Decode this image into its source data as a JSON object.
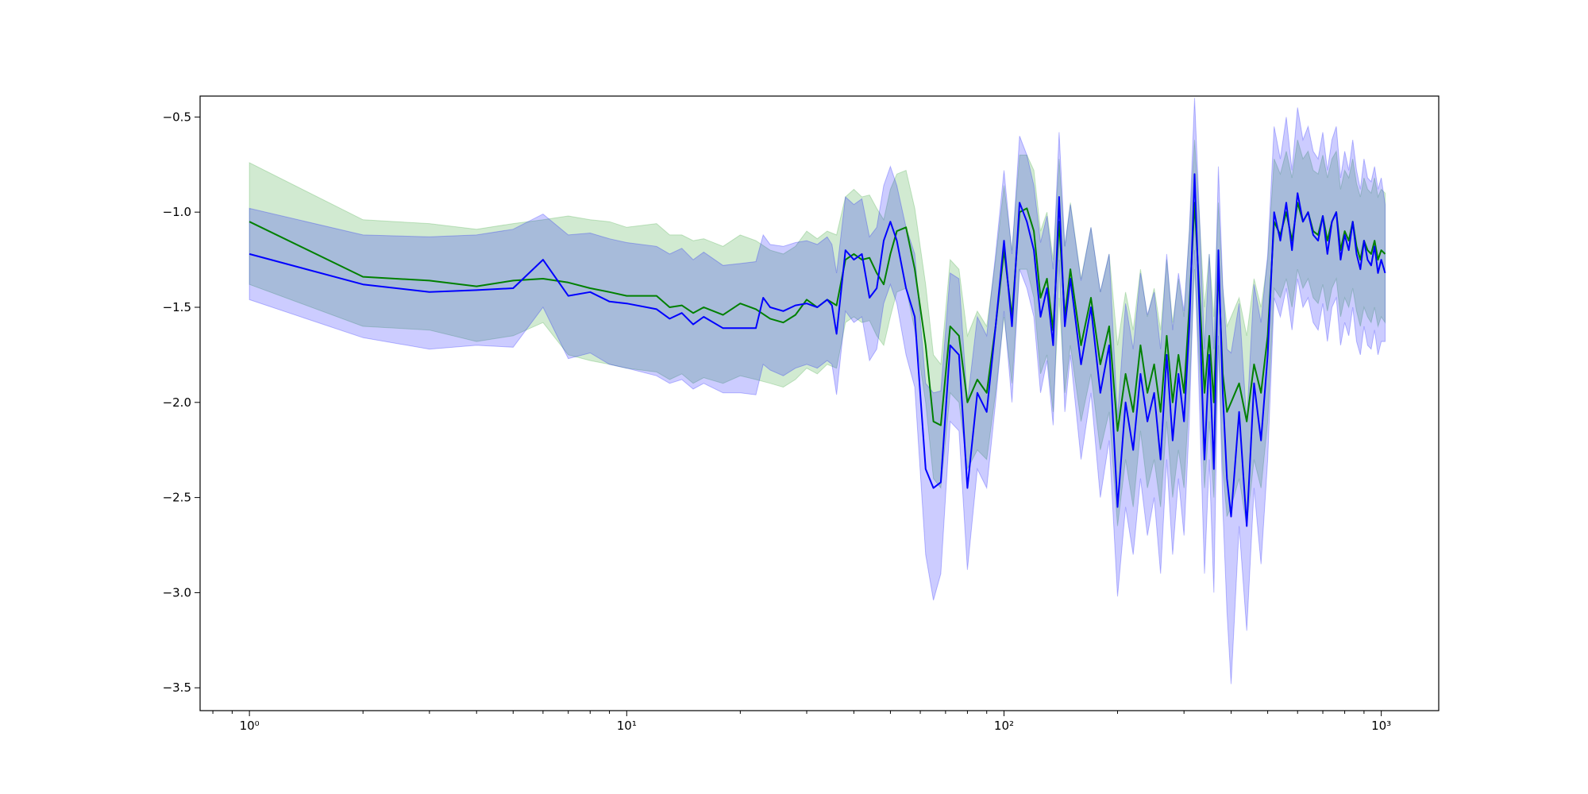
{
  "chart_data": {
    "type": "line",
    "title": "",
    "xlabel": "",
    "ylabel": "",
    "x_scale": "log",
    "xlim": [
      0.74,
      1420
    ],
    "ylim": [
      -3.62,
      -0.39
    ],
    "grid": false,
    "legend": "none",
    "x_ticks": [
      {
        "value": 1,
        "label": "10⁰"
      },
      {
        "value": 10,
        "label": "10¹"
      },
      {
        "value": 100,
        "label": "10²"
      },
      {
        "value": 1000,
        "label": "10³"
      }
    ],
    "y_ticks": [
      {
        "value": -0.5,
        "label": "−0.5"
      },
      {
        "value": -1.0,
        "label": "−1.0"
      },
      {
        "value": -1.5,
        "label": "−1.5"
      },
      {
        "value": -2.0,
        "label": "−2.0"
      },
      {
        "value": -2.5,
        "label": "−2.5"
      },
      {
        "value": -3.0,
        "label": "−3.0"
      },
      {
        "value": -3.5,
        "label": "−3.5"
      }
    ],
    "series": [
      {
        "color": "#008000",
        "band_color": "#2ca02c",
        "band_opacity": 0.22,
        "x": [
          1,
          2,
          3,
          4,
          5,
          6,
          7,
          8,
          9,
          10,
          12,
          13,
          14,
          15,
          16,
          18,
          20,
          22,
          24,
          26,
          28,
          30,
          32,
          34,
          36,
          38,
          40,
          42,
          44,
          46,
          48,
          50,
          52,
          55,
          58,
          62,
          65,
          68,
          72,
          76,
          80,
          85,
          90,
          95,
          100,
          105,
          110,
          115,
          120,
          125,
          130,
          135,
          140,
          145,
          150,
          160,
          170,
          180,
          190,
          200,
          210,
          220,
          230,
          240,
          250,
          260,
          270,
          280,
          290,
          300,
          310,
          320,
          330,
          340,
          350,
          360,
          370,
          380,
          390,
          400,
          420,
          440,
          460,
          480,
          500,
          520,
          540,
          560,
          580,
          600,
          620,
          640,
          660,
          680,
          700,
          720,
          740,
          760,
          780,
          800,
          820,
          840,
          860,
          880,
          900,
          920,
          940,
          960,
          980,
          1000,
          1024
        ],
        "y": [
          -1.05,
          -1.34,
          -1.36,
          -1.39,
          -1.36,
          -1.35,
          -1.37,
          -1.4,
          -1.42,
          -1.44,
          -1.44,
          -1.5,
          -1.49,
          -1.53,
          -1.5,
          -1.54,
          -1.48,
          -1.51,
          -1.56,
          -1.58,
          -1.54,
          -1.46,
          -1.5,
          -1.46,
          -1.49,
          -1.25,
          -1.22,
          -1.25,
          -1.24,
          -1.32,
          -1.38,
          -1.22,
          -1.1,
          -1.08,
          -1.3,
          -1.7,
          -2.1,
          -2.12,
          -1.6,
          -1.65,
          -2.0,
          -1.88,
          -1.95,
          -1.6,
          -1.2,
          -1.55,
          -1.0,
          -0.98,
          -1.1,
          -1.45,
          -1.35,
          -1.62,
          -1.05,
          -1.55,
          -1.3,
          -1.7,
          -1.45,
          -1.8,
          -1.6,
          -2.15,
          -1.85,
          -2.05,
          -1.7,
          -1.95,
          -1.8,
          -2.05,
          -1.65,
          -2.0,
          -1.75,
          -1.95,
          -1.5,
          -0.95,
          -1.45,
          -1.95,
          -1.65,
          -2.0,
          -1.3,
          -1.85,
          -2.05,
          -2.0,
          -1.9,
          -2.1,
          -1.8,
          -1.95,
          -1.65,
          -1.05,
          -1.12,
          -1.0,
          -1.15,
          -0.95,
          -1.05,
          -1.0,
          -1.1,
          -1.12,
          -1.02,
          -1.15,
          -1.05,
          -1.0,
          -1.2,
          -1.1,
          -1.15,
          -1.05,
          -1.18,
          -1.25,
          -1.15,
          -1.2,
          -1.22,
          -1.15,
          -1.25,
          -1.2,
          -1.22
        ],
        "lower": [
          -1.38,
          -1.6,
          -1.62,
          -1.68,
          -1.65,
          -1.58,
          -1.75,
          -1.78,
          -1.8,
          -1.82,
          -1.84,
          -1.88,
          -1.85,
          -1.9,
          -1.87,
          -1.9,
          -1.86,
          -1.88,
          -1.9,
          -1.92,
          -1.88,
          -1.82,
          -1.85,
          -1.8,
          -1.82,
          -1.58,
          -1.55,
          -1.58,
          -1.57,
          -1.65,
          -1.7,
          -1.55,
          -1.42,
          -1.4,
          -1.62,
          -2.0,
          -2.4,
          -2.45,
          -1.95,
          -2.0,
          -2.35,
          -2.25,
          -2.3,
          -1.95,
          -1.55,
          -1.9,
          -1.3,
          -1.3,
          -1.45,
          -1.85,
          -1.75,
          -2.05,
          -1.45,
          -1.95,
          -1.7,
          -2.1,
          -1.85,
          -2.25,
          -2.05,
          -2.65,
          -2.3,
          -2.55,
          -2.15,
          -2.45,
          -2.3,
          -2.55,
          -2.1,
          -2.5,
          -2.25,
          -2.45,
          -1.95,
          -1.3,
          -1.85,
          -2.45,
          -2.1,
          -2.5,
          -1.7,
          -2.35,
          -2.6,
          -2.55,
          -2.4,
          -2.65,
          -2.3,
          -2.45,
          -2.1,
          -1.4,
          -1.45,
          -1.35,
          -1.5,
          -1.3,
          -1.4,
          -1.35,
          -1.45,
          -1.48,
          -1.38,
          -1.52,
          -1.4,
          -1.35,
          -1.55,
          -1.45,
          -1.5,
          -1.4,
          -1.52,
          -1.6,
          -1.5,
          -1.55,
          -1.58,
          -1.5,
          -1.6,
          -1.55,
          -1.58
        ],
        "upper": [
          -0.74,
          -1.04,
          -1.06,
          -1.09,
          -1.06,
          -1.04,
          -1.02,
          -1.04,
          -1.05,
          -1.08,
          -1.06,
          -1.12,
          -1.12,
          -1.15,
          -1.14,
          -1.18,
          -1.12,
          -1.15,
          -1.2,
          -1.22,
          -1.18,
          -1.1,
          -1.14,
          -1.1,
          -1.12,
          -0.92,
          -0.88,
          -0.92,
          -0.91,
          -0.98,
          -1.04,
          -0.88,
          -0.8,
          -0.78,
          -0.98,
          -1.38,
          -1.75,
          -1.8,
          -1.25,
          -1.3,
          -1.65,
          -1.52,
          -1.6,
          -1.25,
          -0.86,
          -1.2,
          -0.7,
          -0.7,
          -0.78,
          -1.1,
          -1.0,
          -1.25,
          -0.72,
          -1.18,
          -0.95,
          -1.35,
          -1.08,
          -1.42,
          -1.22,
          -1.7,
          -1.42,
          -1.62,
          -1.3,
          -1.55,
          -1.4,
          -1.62,
          -1.25,
          -1.58,
          -1.35,
          -1.55,
          -1.1,
          -0.62,
          -1.05,
          -1.5,
          -1.22,
          -1.55,
          -0.95,
          -1.4,
          -1.6,
          -1.55,
          -1.45,
          -1.65,
          -1.35,
          -1.5,
          -1.25,
          -0.72,
          -0.8,
          -0.68,
          -0.82,
          -0.62,
          -0.72,
          -0.68,
          -0.78,
          -0.8,
          -0.7,
          -0.82,
          -0.72,
          -0.68,
          -0.88,
          -0.78,
          -0.82,
          -0.72,
          -0.85,
          -0.92,
          -0.82,
          -0.88,
          -0.9,
          -0.82,
          -0.92,
          -0.88,
          -0.9
        ]
      },
      {
        "color": "#0000ff",
        "band_color": "#0000ff",
        "band_opacity": 0.2,
        "x": [
          1,
          2,
          3,
          4,
          5,
          6,
          7,
          8,
          9,
          10,
          12,
          13,
          14,
          15,
          16,
          18,
          20,
          22,
          23,
          24,
          26,
          28,
          30,
          32,
          34,
          35,
          36,
          38,
          40,
          42,
          44,
          46,
          48,
          50,
          52,
          55,
          58,
          62,
          65,
          68,
          72,
          76,
          80,
          85,
          90,
          95,
          100,
          105,
          110,
          115,
          120,
          125,
          130,
          135,
          140,
          145,
          150,
          160,
          170,
          180,
          190,
          200,
          210,
          220,
          230,
          240,
          250,
          260,
          270,
          280,
          290,
          300,
          310,
          320,
          330,
          340,
          350,
          360,
          370,
          380,
          390,
          400,
          420,
          440,
          460,
          480,
          500,
          520,
          540,
          560,
          580,
          600,
          620,
          640,
          660,
          680,
          700,
          720,
          740,
          760,
          780,
          800,
          820,
          840,
          860,
          880,
          900,
          920,
          940,
          960,
          980,
          1000,
          1024
        ],
        "y": [
          -1.22,
          -1.38,
          -1.42,
          -1.41,
          -1.4,
          -1.25,
          -1.44,
          -1.42,
          -1.47,
          -1.48,
          -1.51,
          -1.56,
          -1.53,
          -1.59,
          -1.55,
          -1.61,
          -1.61,
          -1.61,
          -1.45,
          -1.5,
          -1.52,
          -1.49,
          -1.48,
          -1.5,
          -1.46,
          -1.49,
          -1.64,
          -1.2,
          -1.25,
          -1.22,
          -1.45,
          -1.4,
          -1.15,
          -1.05,
          -1.15,
          -1.4,
          -1.55,
          -2.35,
          -2.45,
          -2.42,
          -1.7,
          -1.75,
          -2.45,
          -1.95,
          -2.05,
          -1.6,
          -1.15,
          -1.6,
          -0.95,
          -1.05,
          -1.2,
          -1.55,
          -1.4,
          -1.7,
          -0.92,
          -1.6,
          -1.35,
          -1.8,
          -1.5,
          -1.95,
          -1.7,
          -2.55,
          -2.0,
          -2.25,
          -1.85,
          -2.1,
          -1.95,
          -2.3,
          -1.75,
          -2.2,
          -1.85,
          -2.1,
          -1.6,
          -0.8,
          -1.55,
          -2.3,
          -1.75,
          -2.35,
          -1.2,
          -1.95,
          -2.4,
          -2.6,
          -2.05,
          -2.65,
          -1.9,
          -2.2,
          -1.75,
          -1.0,
          -1.15,
          -0.95,
          -1.2,
          -0.9,
          -1.05,
          -1.0,
          -1.12,
          -1.15,
          -1.02,
          -1.22,
          -1.05,
          -1.0,
          -1.25,
          -1.12,
          -1.2,
          -1.05,
          -1.22,
          -1.3,
          -1.15,
          -1.25,
          -1.28,
          -1.18,
          -1.32,
          -1.25,
          -1.32
        ],
        "lower": [
          -1.46,
          -1.66,
          -1.72,
          -1.7,
          -1.71,
          -1.5,
          -1.77,
          -1.74,
          -1.8,
          -1.82,
          -1.86,
          -1.9,
          -1.88,
          -1.93,
          -1.9,
          -1.95,
          -1.95,
          -1.96,
          -1.8,
          -1.83,
          -1.86,
          -1.82,
          -1.8,
          -1.82,
          -1.78,
          -1.8,
          -1.96,
          -1.52,
          -1.58,
          -1.55,
          -1.78,
          -1.72,
          -1.48,
          -1.38,
          -1.48,
          -1.75,
          -1.92,
          -2.8,
          -3.04,
          -2.9,
          -2.1,
          -2.15,
          -2.88,
          -2.35,
          -2.45,
          -2.0,
          -1.52,
          -2.0,
          -1.3,
          -1.4,
          -1.55,
          -1.95,
          -1.78,
          -2.12,
          -1.25,
          -2.05,
          -1.75,
          -2.3,
          -1.95,
          -2.5,
          -2.2,
          -3.02,
          -2.55,
          -2.8,
          -2.4,
          -2.7,
          -2.5,
          -2.9,
          -2.3,
          -2.8,
          -2.4,
          -2.7,
          -2.1,
          -1.2,
          -2.05,
          -2.9,
          -2.3,
          -3.0,
          -1.65,
          -2.55,
          -3.1,
          -3.48,
          -2.65,
          -3.2,
          -2.45,
          -2.85,
          -2.3,
          -1.45,
          -1.55,
          -1.4,
          -1.62,
          -1.35,
          -1.5,
          -1.45,
          -1.58,
          -1.62,
          -1.48,
          -1.68,
          -1.5,
          -1.45,
          -1.7,
          -1.58,
          -1.65,
          -1.5,
          -1.68,
          -1.75,
          -1.6,
          -1.7,
          -1.72,
          -1.62,
          -1.75,
          -1.68,
          -1.68
        ],
        "upper": [
          -0.98,
          -1.12,
          -1.13,
          -1.12,
          -1.09,
          -1.01,
          -1.12,
          -1.11,
          -1.14,
          -1.16,
          -1.18,
          -1.22,
          -1.19,
          -1.25,
          -1.21,
          -1.28,
          -1.27,
          -1.26,
          -1.12,
          -1.17,
          -1.18,
          -1.16,
          -1.15,
          -1.17,
          -1.13,
          -1.17,
          -1.32,
          -0.92,
          -0.96,
          -0.93,
          -1.13,
          -1.08,
          -0.86,
          -0.76,
          -0.86,
          -1.08,
          -1.22,
          -1.9,
          -1.95,
          -1.94,
          -1.32,
          -1.35,
          -2.0,
          -1.55,
          -1.65,
          -1.22,
          -0.78,
          -1.22,
          -0.6,
          -0.7,
          -0.86,
          -1.16,
          -1.02,
          -1.3,
          -0.58,
          -1.18,
          -0.96,
          -1.36,
          -1.08,
          -1.42,
          -1.22,
          -2.08,
          -1.48,
          -1.72,
          -1.32,
          -1.54,
          -1.42,
          -1.72,
          -1.22,
          -1.62,
          -1.32,
          -1.52,
          -1.1,
          -0.4,
          -1.04,
          -1.72,
          -1.22,
          -1.72,
          -0.76,
          -1.38,
          -1.72,
          -1.74,
          -1.48,
          -2.1,
          -1.38,
          -1.58,
          -1.22,
          -0.55,
          -0.72,
          -0.5,
          -0.78,
          -0.45,
          -0.62,
          -0.55,
          -0.68,
          -0.72,
          -0.58,
          -0.78,
          -0.62,
          -0.55,
          -0.82,
          -0.68,
          -0.78,
          -0.62,
          -0.78,
          -0.88,
          -0.72,
          -0.82,
          -0.84,
          -0.76,
          -0.88,
          -0.82,
          -0.96
        ]
      }
    ]
  }
}
